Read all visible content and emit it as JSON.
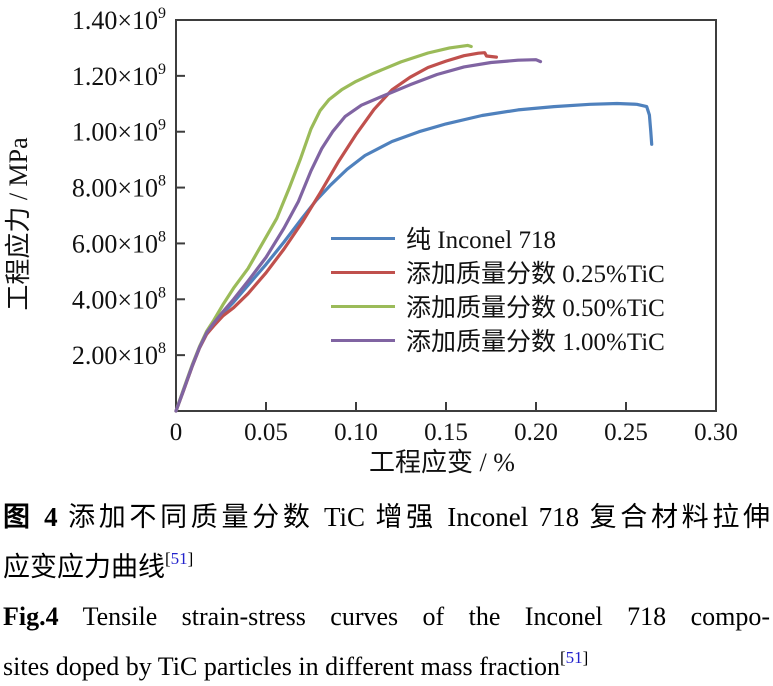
{
  "figure": {
    "background": "#ffffff",
    "axis_color": "#3d3d3d",
    "text_color": "#111111",
    "ref_color": "#2222cc"
  },
  "chart_data": {
    "type": "line",
    "title": "",
    "xlabel": "工程应变 / %",
    "ylabel": "工程应力 / MPa",
    "xlim": [
      0,
      0.3
    ],
    "ylim": [
      0,
      1400000000
    ],
    "grid": false,
    "legend_position": "inside-middle-right",
    "x_ticks": [
      {
        "v": 0,
        "label": "0"
      },
      {
        "v": 0.05,
        "label": "0.05"
      },
      {
        "v": 0.1,
        "label": "0.10"
      },
      {
        "v": 0.15,
        "label": "0.15"
      },
      {
        "v": 0.2,
        "label": "0.20"
      },
      {
        "v": 0.25,
        "label": "0.25"
      },
      {
        "v": 0.3,
        "label": "0.30"
      }
    ],
    "y_ticks": [
      {
        "v": 200000000,
        "coef": "2.00×10",
        "exp": "8"
      },
      {
        "v": 400000000,
        "coef": "4.00×10",
        "exp": "8"
      },
      {
        "v": 600000000,
        "coef": "6.00×10",
        "exp": "8"
      },
      {
        "v": 800000000,
        "coef": "8.00×10",
        "exp": "8"
      },
      {
        "v": 1000000000,
        "coef": "1.00×10",
        "exp": "9"
      },
      {
        "v": 1200000000,
        "coef": "1.20×10",
        "exp": "9"
      },
      {
        "v": 1400000000,
        "coef": "1.40×10",
        "exp": "9"
      }
    ],
    "series": [
      {
        "name": "纯 Inconel 718",
        "color": "#4f81bd",
        "points": [
          [
            0,
            0
          ],
          [
            0.004,
            70000000
          ],
          [
            0.009,
            160000000
          ],
          [
            0.013,
            225000000
          ],
          [
            0.017,
            275000000
          ],
          [
            0.021,
            310000000
          ],
          [
            0.026,
            350000000
          ],
          [
            0.032,
            390000000
          ],
          [
            0.04,
            450000000
          ],
          [
            0.05,
            525000000
          ],
          [
            0.06,
            605000000
          ],
          [
            0.07,
            690000000
          ],
          [
            0.078,
            755000000
          ],
          [
            0.086,
            810000000
          ],
          [
            0.095,
            865000000
          ],
          [
            0.105,
            915000000
          ],
          [
            0.12,
            965000000
          ],
          [
            0.135,
            1000000000
          ],
          [
            0.15,
            1028000000
          ],
          [
            0.17,
            1058000000
          ],
          [
            0.19,
            1078000000
          ],
          [
            0.21,
            1090000000
          ],
          [
            0.23,
            1098000000
          ],
          [
            0.245,
            1101000000
          ],
          [
            0.256,
            1098000000
          ],
          [
            0.2615,
            1090000000
          ],
          [
            0.263,
            1060000000
          ],
          [
            0.2638,
            1000000000
          ],
          [
            0.2643,
            955000000
          ]
        ]
      },
      {
        "name": "添加质量分数 0.25%TiC",
        "color": "#c0504d",
        "points": [
          [
            0,
            0
          ],
          [
            0.004,
            70000000
          ],
          [
            0.009,
            160000000
          ],
          [
            0.013,
            225000000
          ],
          [
            0.017,
            275000000
          ],
          [
            0.021,
            305000000
          ],
          [
            0.026,
            340000000
          ],
          [
            0.032,
            370000000
          ],
          [
            0.04,
            420000000
          ],
          [
            0.05,
            495000000
          ],
          [
            0.06,
            580000000
          ],
          [
            0.07,
            675000000
          ],
          [
            0.08,
            780000000
          ],
          [
            0.09,
            890000000
          ],
          [
            0.1,
            990000000
          ],
          [
            0.11,
            1080000000
          ],
          [
            0.12,
            1150000000
          ],
          [
            0.13,
            1195000000
          ],
          [
            0.14,
            1230000000
          ],
          [
            0.15,
            1253000000
          ],
          [
            0.16,
            1272000000
          ],
          [
            0.168,
            1281000000
          ],
          [
            0.1715,
            1283000000
          ],
          [
            0.1725,
            1271000000
          ],
          [
            0.178,
            1267000000
          ]
        ]
      },
      {
        "name": "添加质量分数 0.50%TiC",
        "color": "#9bbb59",
        "points": [
          [
            0,
            0
          ],
          [
            0.004,
            75000000
          ],
          [
            0.009,
            165000000
          ],
          [
            0.013,
            230000000
          ],
          [
            0.017,
            285000000
          ],
          [
            0.021,
            325000000
          ],
          [
            0.026,
            380000000
          ],
          [
            0.032,
            440000000
          ],
          [
            0.04,
            510000000
          ],
          [
            0.048,
            600000000
          ],
          [
            0.056,
            690000000
          ],
          [
            0.063,
            800000000
          ],
          [
            0.069,
            900000000
          ],
          [
            0.075,
            1010000000
          ],
          [
            0.08,
            1075000000
          ],
          [
            0.085,
            1115000000
          ],
          [
            0.092,
            1150000000
          ],
          [
            0.1,
            1180000000
          ],
          [
            0.11,
            1210000000
          ],
          [
            0.125,
            1250000000
          ],
          [
            0.14,
            1282000000
          ],
          [
            0.152,
            1300000000
          ],
          [
            0.162,
            1309000000
          ],
          [
            0.164,
            1305000000
          ]
        ]
      },
      {
        "name": "添加质量分数 1.00%TiC",
        "color": "#8064a2",
        "points": [
          [
            0,
            0
          ],
          [
            0.004,
            72000000
          ],
          [
            0.009,
            162000000
          ],
          [
            0.013,
            227000000
          ],
          [
            0.017,
            280000000
          ],
          [
            0.021,
            315000000
          ],
          [
            0.026,
            355000000
          ],
          [
            0.032,
            400000000
          ],
          [
            0.04,
            465000000
          ],
          [
            0.05,
            550000000
          ],
          [
            0.06,
            655000000
          ],
          [
            0.068,
            750000000
          ],
          [
            0.075,
            860000000
          ],
          [
            0.081,
            940000000
          ],
          [
            0.087,
            1000000000
          ],
          [
            0.094,
            1055000000
          ],
          [
            0.103,
            1095000000
          ],
          [
            0.115,
            1128000000
          ],
          [
            0.13,
            1168000000
          ],
          [
            0.145,
            1205000000
          ],
          [
            0.16,
            1232000000
          ],
          [
            0.175,
            1248000000
          ],
          [
            0.19,
            1256000000
          ],
          [
            0.2,
            1258000000
          ],
          [
            0.2025,
            1251000000
          ]
        ]
      }
    ]
  },
  "captions": {
    "zh": {
      "label": "图 4",
      "line1": "添加不同质量分数 TiC 增强 Inconel 718 复合材料拉伸",
      "line2": "应变应力曲线",
      "ref_open": "[",
      "ref_num": "51",
      "ref_close": "]"
    },
    "en": {
      "label": "Fig.4",
      "line1": "Tensile strain-stress curves of the Inconel 718 compo-",
      "line2": "sites doped by TiC particles in different mass fraction",
      "ref_open": "[",
      "ref_num": "51",
      "ref_close": "]"
    }
  }
}
